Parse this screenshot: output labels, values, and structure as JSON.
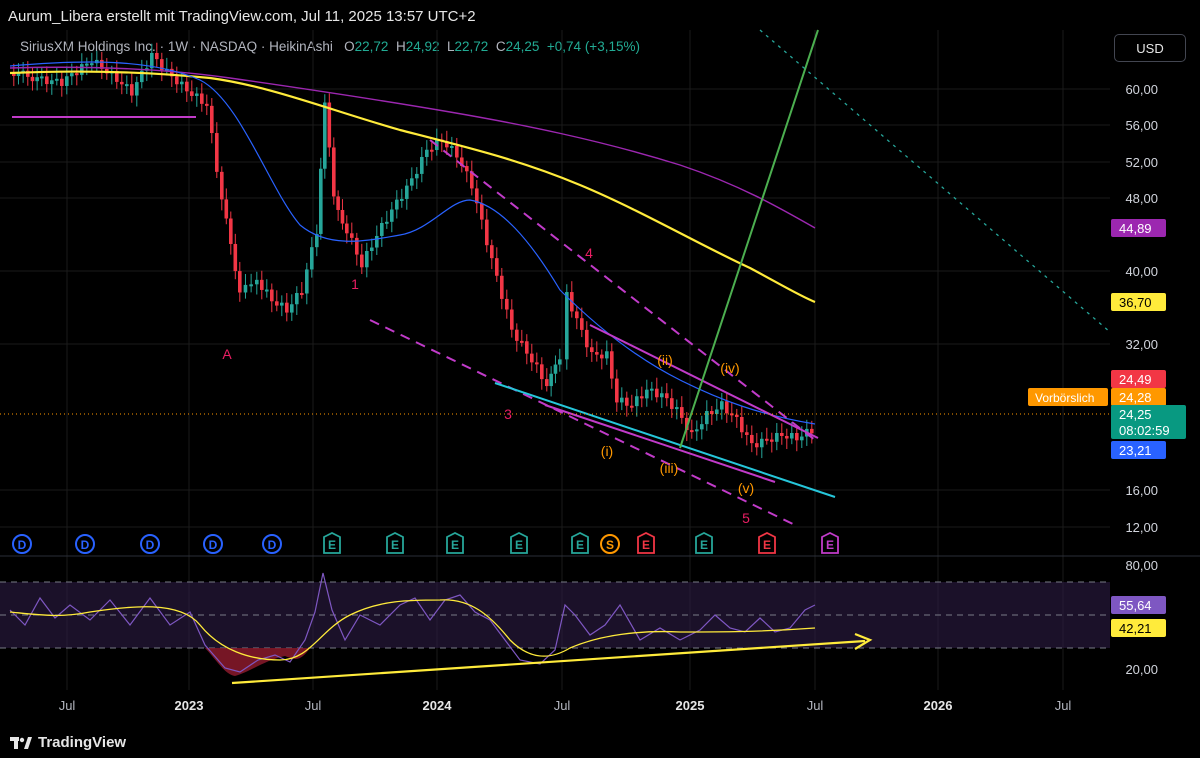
{
  "header": {
    "title": "Aurum_Libera erstellt mit TradingView.com, Jul 11, 2025 13:57 UTC+2"
  },
  "legend": {
    "symbol": "SiriusXM Holdings Inc.",
    "interval": "1W",
    "exchange": "NASDAQ",
    "chart_style": "HeikinAshi",
    "open_label": "O",
    "open": "22,72",
    "high_label": "H",
    "high": "24,92",
    "low_label": "L",
    "low": "22,72",
    "close_label": "C",
    "close": "24,25",
    "change": "+0,74 (+3,15%)"
  },
  "currency_button": "USD",
  "price_axis": {
    "ticks": [
      "60,00",
      "56,00",
      "52,00",
      "48,00",
      "40,00",
      "32,00",
      "16,00",
      "12,00"
    ],
    "badges": {
      "ma_purple": {
        "value": "44,89",
        "color": "#9c27b0"
      },
      "ma_yellow": {
        "value": "36,70",
        "color": "#ffeb3b"
      },
      "high_red": {
        "value": "24,49",
        "color": "#f23645"
      },
      "premarket_label": "Vorbörslich",
      "premarket": {
        "value": "24,28",
        "color": "#ff9800"
      },
      "last": {
        "value": "24,25",
        "color": "#089981"
      },
      "countdown": "08:02:59",
      "low_blue": {
        "value": "23,21",
        "color": "#2962ff"
      }
    }
  },
  "rsi_axis": {
    "ticks": [
      "80,00",
      "20,00"
    ],
    "badges": {
      "rsi": {
        "value": "55,64",
        "color": "#7e57c2"
      },
      "rsi_ma": {
        "value": "42,21",
        "color": "#ffeb3b"
      }
    }
  },
  "time_axis": [
    "Jul",
    "2023",
    "Jul",
    "2024",
    "Jul",
    "2025",
    "Jul",
    "2026",
    "Jul"
  ],
  "wave_labels": {
    "A": "A",
    "w1": "1",
    "w3": "3",
    "w4": "4",
    "w5": "5",
    "i": "(i)",
    "ii": "(ii)",
    "iii": "(iii)",
    "iv": "(iv)",
    "v": "(v)"
  },
  "event_markers": [
    "D",
    "D",
    "D",
    "D",
    "D",
    "E",
    "E",
    "E",
    "E",
    "E",
    "S",
    "E",
    "E",
    "E",
    "E"
  ],
  "footer": {
    "brand": "TradingView"
  },
  "colors": {
    "bull": "#26a69a",
    "bear": "#f23645",
    "ma200": "#ffeb3b",
    "ma_long": "#9c27b0",
    "ma_short": "#2962ff",
    "trendline": "#26c6da",
    "elliott_orange": "#ff9800",
    "elliott_red": "#e91e63"
  }
}
